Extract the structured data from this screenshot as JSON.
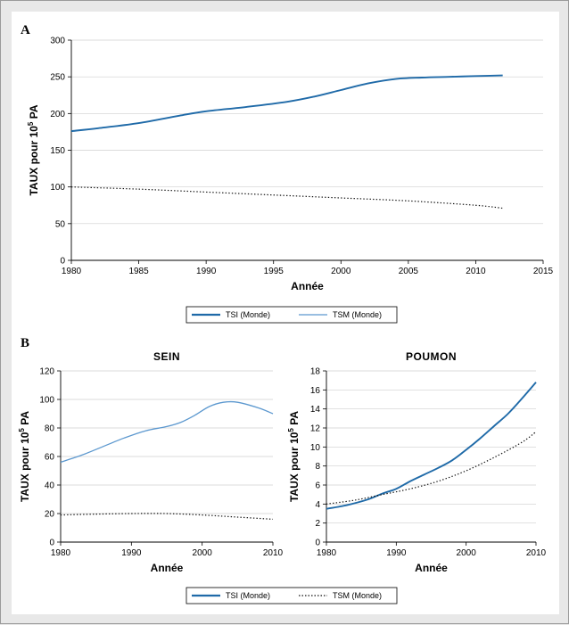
{
  "panel_labels": {
    "a": "A",
    "b": "B"
  },
  "colors": {
    "tsi": "#1f6aa8",
    "tsm_a": "#5c98cf",
    "dotted": "#111111",
    "grid": "#cfcfcf"
  },
  "legend_a": {
    "tsi": "TSI (Monde)",
    "tsm": "TSM (Monde)"
  },
  "legend_b": {
    "tsi": "TSI (Monde)",
    "tsm": "TSM (Monde)"
  },
  "chart_data": [
    {
      "id": "A",
      "type": "line",
      "title": "",
      "xlabel": "Année",
      "ylabel_main": "TAUX pour 10",
      "ylabel_sup": "5",
      "ylabel_tail": " PA",
      "xlim": [
        1980,
        2015
      ],
      "ylim": [
        0,
        300
      ],
      "xticks": [
        1980,
        1985,
        1990,
        1995,
        2000,
        2005,
        2010,
        2015
      ],
      "yticks": [
        0,
        50,
        100,
        150,
        200,
        250,
        300
      ],
      "series": [
        {
          "key": "tsi",
          "style": "solid",
          "x": [
            1980,
            1982,
            1985,
            1988,
            1990,
            1993,
            1996,
            1998,
            2000,
            2002,
            2004,
            2006,
            2008,
            2010,
            2012
          ],
          "y": [
            176,
            180,
            187,
            197,
            203,
            209,
            216,
            223,
            232,
            241,
            247,
            249,
            250,
            251,
            252
          ]
        },
        {
          "key": "tsm",
          "style": "dotted",
          "x": [
            1980,
            1985,
            1990,
            1995,
            2000,
            2005,
            2010,
            2012
          ],
          "y": [
            100,
            97,
            93,
            89,
            85,
            81,
            75,
            71
          ]
        }
      ]
    },
    {
      "id": "B-sein",
      "type": "line",
      "title": "SEIN",
      "xlabel": "Année",
      "ylabel_main": "TAUX pour 10",
      "ylabel_sup": "5",
      "ylabel_tail": " PA",
      "xlim": [
        1980,
        2010
      ],
      "ylim": [
        0,
        120
      ],
      "xticks": [
        1980,
        1990,
        2000,
        2010
      ],
      "yticks": [
        0,
        20,
        40,
        60,
        80,
        100,
        120
      ],
      "series": [
        {
          "key": "tsi",
          "style": "solid",
          "x": [
            1980,
            1983,
            1986,
            1989,
            1992,
            1995,
            1997,
            1999,
            2001,
            2003,
            2005,
            2008,
            2010
          ],
          "y": [
            56,
            61,
            67,
            73,
            78,
            81,
            84,
            89,
            95,
            98,
            98,
            94,
            90
          ]
        },
        {
          "key": "tsm",
          "style": "dotted",
          "x": [
            1980,
            1985,
            1990,
            1995,
            2000,
            2005,
            2010
          ],
          "y": [
            19,
            19.6,
            20,
            20,
            19,
            17.5,
            16
          ]
        }
      ]
    },
    {
      "id": "B-poumon",
      "type": "line",
      "title": "POUMON",
      "xlabel": "Année",
      "ylabel_main": "TAUX pour 10",
      "ylabel_sup": "5",
      "ylabel_tail": " PA",
      "xlim": [
        1980,
        2010
      ],
      "ylim": [
        0,
        18
      ],
      "xticks": [
        1980,
        1990,
        2000,
        2010
      ],
      "yticks": [
        0,
        2,
        4,
        6,
        8,
        10,
        12,
        14,
        16,
        18
      ],
      "series": [
        {
          "key": "tsi",
          "style": "solid",
          "x": [
            1980,
            1983,
            1986,
            1988,
            1990,
            1992,
            1994,
            1996,
            1998,
            2000,
            2002,
            2004,
            2006,
            2008,
            2010
          ],
          "y": [
            3.5,
            3.9,
            4.5,
            5.1,
            5.6,
            6.4,
            7.1,
            7.8,
            8.6,
            9.7,
            10.9,
            12.2,
            13.5,
            15.1,
            16.8
          ]
        },
        {
          "key": "tsm",
          "style": "dotted",
          "x": [
            1980,
            1984,
            1988,
            1992,
            1996,
            2000,
            2004,
            2008,
            2010
          ],
          "y": [
            4.0,
            4.4,
            5.0,
            5.6,
            6.4,
            7.5,
            8.9,
            10.5,
            11.6
          ]
        }
      ]
    }
  ]
}
